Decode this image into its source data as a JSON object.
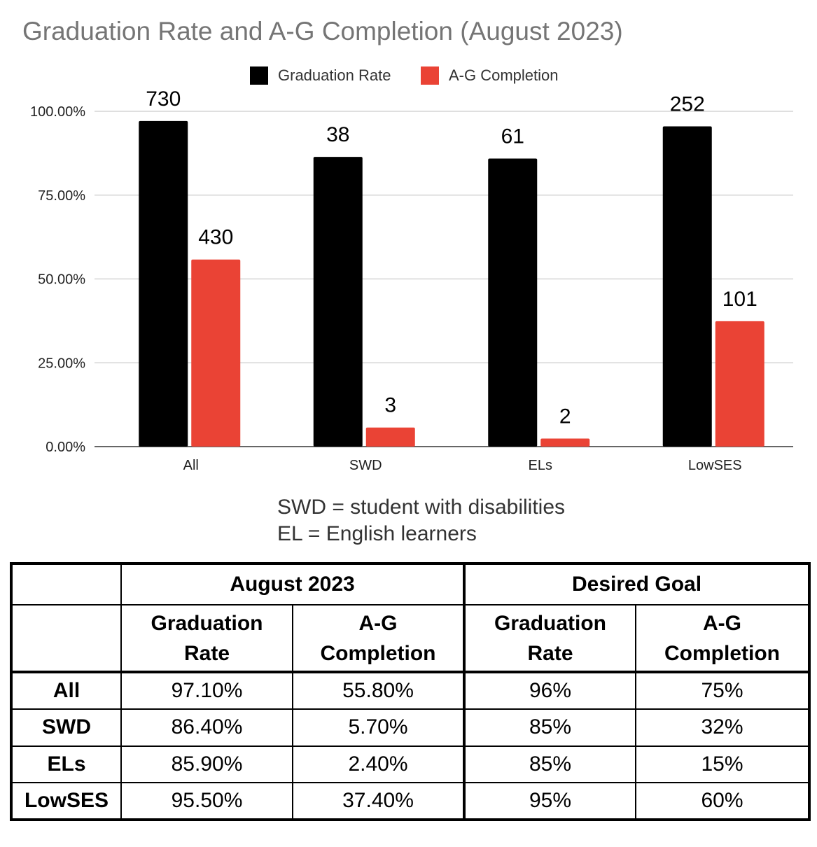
{
  "chart_data": {
    "type": "bar",
    "title": "Graduation Rate and A-G Completion (August 2023)",
    "categories": [
      "All",
      "SWD",
      "ELs",
      "LowSES"
    ],
    "series": [
      {
        "name": "Graduation Rate",
        "color": "#000000",
        "values": [
          97.1,
          86.4,
          85.9,
          95.5
        ],
        "labels": [
          "730",
          "38",
          "61",
          "252"
        ]
      },
      {
        "name": "A-G Completion",
        "color": "#ea4335",
        "values": [
          55.8,
          5.7,
          2.4,
          37.4
        ],
        "labels": [
          "430",
          "3",
          "2",
          "101"
        ]
      }
    ],
    "ylim": [
      0,
      100
    ],
    "yticks": [
      "0.00%",
      "25.00%",
      "50.00%",
      "75.00%",
      "100.00%"
    ],
    "ytick_values": [
      0,
      25,
      50,
      75,
      100
    ],
    "xlabel": "",
    "ylabel": "",
    "legend_position": "top",
    "grid": true
  },
  "notes": [
    "SWD = student with disabilities",
    "EL = English learners"
  ],
  "table": {
    "group_headers": [
      "August 2023",
      "Desired Goal"
    ],
    "sub_headers": [
      [
        "Graduation",
        "Rate"
      ],
      [
        "A-G",
        "Completion"
      ],
      [
        "Graduation",
        "Rate"
      ],
      [
        "A-G",
        "Completion"
      ]
    ],
    "rows": [
      {
        "label": "All",
        "values": [
          "97.10%",
          "55.80%",
          "96%",
          "75%"
        ]
      },
      {
        "label": "SWD",
        "values": [
          "86.40%",
          "5.70%",
          "85%",
          "32%"
        ]
      },
      {
        "label": "ELs",
        "values": [
          "85.90%",
          "2.40%",
          "85%",
          "15%"
        ]
      },
      {
        "label": "LowSES",
        "values": [
          "95.50%",
          "37.40%",
          "95%",
          "60%"
        ]
      }
    ]
  }
}
